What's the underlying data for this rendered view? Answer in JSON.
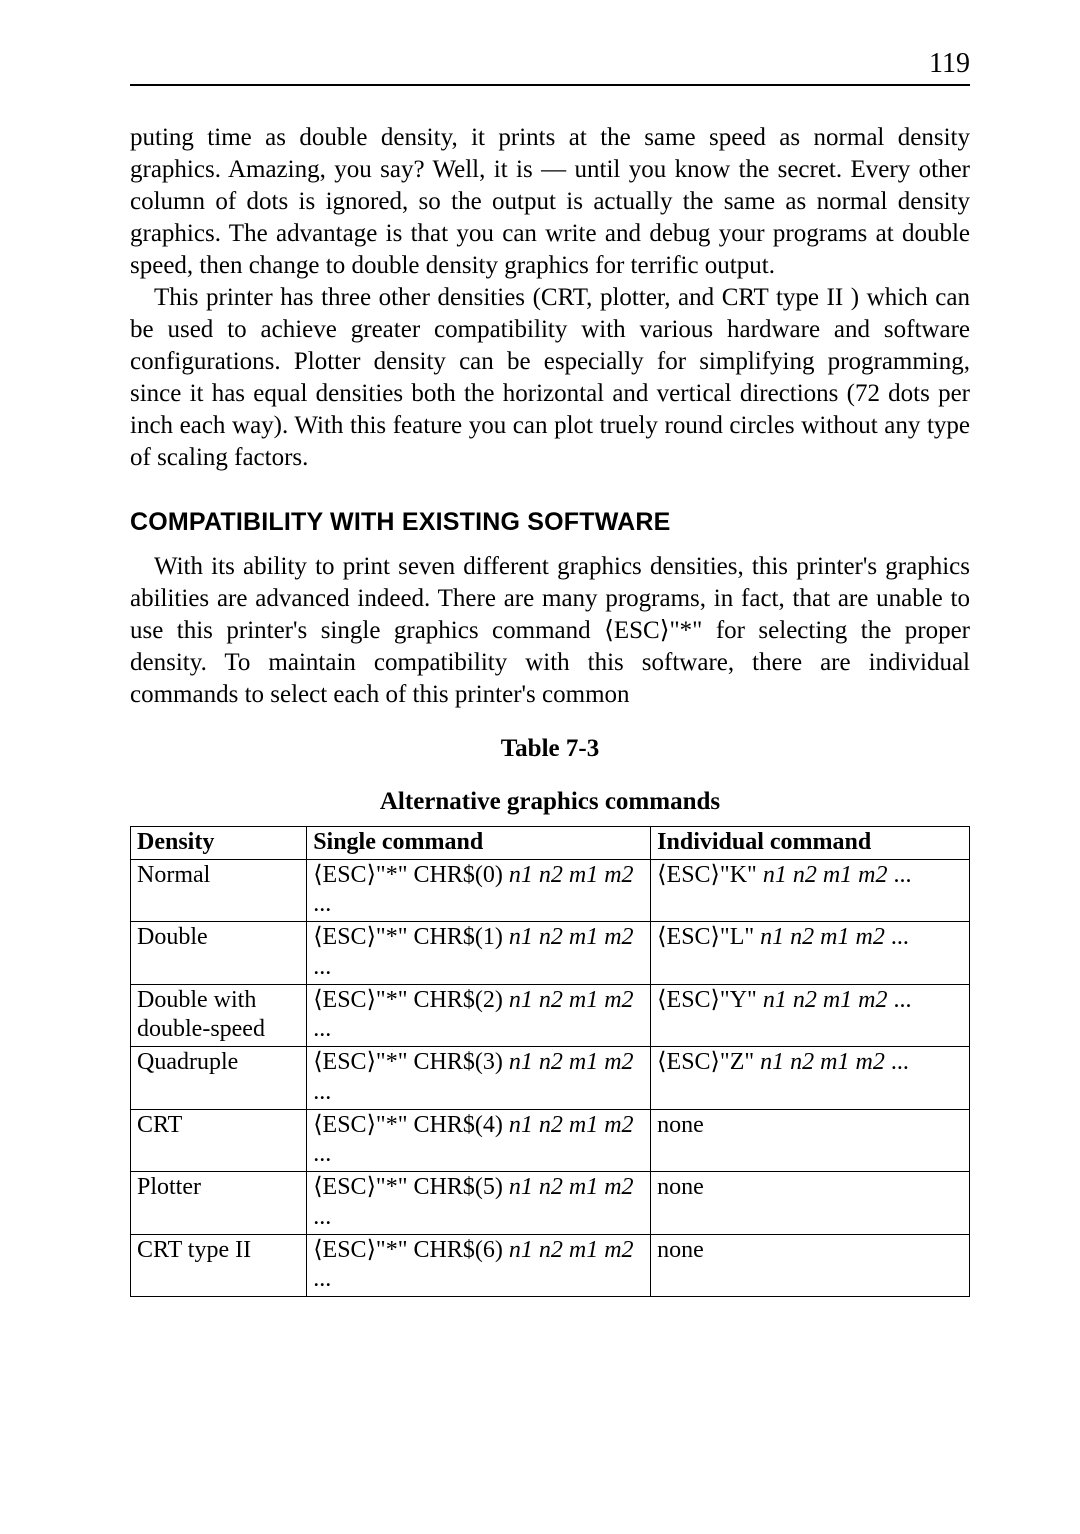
{
  "page_number": "119",
  "paragraphs": {
    "p1": "puting time as double density, it prints at the same speed as normal density graphics. Amazing, you say? Well, it is — until you know the secret. Every other column of dots is ignored, so the output is actually the same as normal density graphics. The advantage is that you can write and debug your programs at double speed, then change to double density graphics for terrific output.",
    "p2": "This printer has three other densities (CRT, plotter, and CRT type II ) which can be used to achieve greater compatibility with various hardware and software configurations. Plotter density can be especially for simplifying programming, since it has equal densities both the horizontal and vertical directions (72 dots per inch each way). With this feature you can plot truely round circles without any type of scaling factors.",
    "p3": "With its ability to print seven different graphics densities, this printer's graphics abilities are advanced indeed. There are many programs, in fact, that are unable to use this printer's single graphics command ⟨ESC⟩\"*\" for selecting the proper density. To maintain compatibility with this software, there are individual commands to select each of this printer's common"
  },
  "section_heading": "COMPATIBILITY WITH EXISTING SOFTWARE",
  "table": {
    "number": "Table 7-3",
    "caption": "Alternative graphics commands",
    "headers": {
      "c1": "Density",
      "c2": "Single command",
      "c3": "Individual command"
    },
    "rows": [
      {
        "density": "Normal",
        "single_a": "⟨ESC⟩\"*\" CHR$(0) ",
        "single_b": "n1 n2 m1 m2",
        "single_c": " ...",
        "indiv_a": "⟨ESC⟩\"K\" ",
        "indiv_b": "n1 n2 m1 m2",
        "indiv_c": " ..."
      },
      {
        "density": "Double",
        "single_a": "⟨ESC⟩\"*\" CHR$(1) ",
        "single_b": "n1 n2 m1 m2",
        "single_c": " ...",
        "indiv_a": "⟨ESC⟩\"L\" ",
        "indiv_b": "n1 n2 m1 m2",
        "indiv_c": " ..."
      },
      {
        "density": "Double with double-speed",
        "single_a": "⟨ESC⟩\"*\" CHR$(2) ",
        "single_b": "n1 n2 m1 m2",
        "single_c": " ...",
        "indiv_a": "⟨ESC⟩\"Y\" ",
        "indiv_b": "n1 n2 m1 m2",
        "indiv_c": " ..."
      },
      {
        "density": "Quadruple",
        "single_a": "⟨ESC⟩\"*\" CHR$(3) ",
        "single_b": "n1 n2 m1 m2",
        "single_c": " ...",
        "indiv_a": "⟨ESC⟩\"Z\" ",
        "indiv_b": "n1 n2 m1 m2",
        "indiv_c": " ..."
      },
      {
        "density": "CRT",
        "single_a": "⟨ESC⟩\"*\" CHR$(4) ",
        "single_b": "n1 n2 m1 m2",
        "single_c": " ...",
        "indiv_a": "none",
        "indiv_b": "",
        "indiv_c": ""
      },
      {
        "density": "Plotter",
        "single_a": "⟨ESC⟩\"*\" CHR$(5) ",
        "single_b": "n1 n2 m1 m2",
        "single_c": " ...",
        "indiv_a": "none",
        "indiv_b": "",
        "indiv_c": ""
      },
      {
        "density": "CRT type II",
        "single_a": "⟨ESC⟩\"*\" CHR$(6) ",
        "single_b": "n1 n2 m1 m2",
        "single_c": " ...",
        "indiv_a": "none",
        "indiv_b": "",
        "indiv_c": ""
      }
    ]
  }
}
